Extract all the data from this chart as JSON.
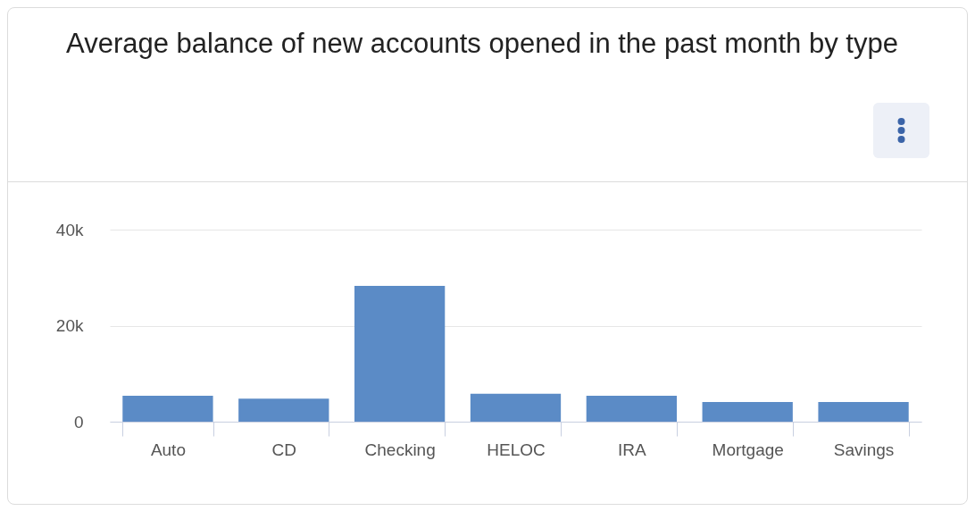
{
  "chart_data": {
    "type": "bar",
    "title": "Average balance of new accounts opened in the past month by type",
    "categories": [
      "Auto",
      "CD",
      "Checking",
      "HELOC",
      "IRA",
      "Mortgage",
      "Savings"
    ],
    "values": [
      5400,
      4800,
      28300,
      5800,
      5400,
      4100,
      4100
    ],
    "color": "#5b8bc6",
    "ylim": [
      0,
      40000
    ],
    "yticks": [
      {
        "value": 0,
        "label": "0"
      },
      {
        "value": 20000,
        "label": "20k"
      },
      {
        "value": 40000,
        "label": "40k"
      }
    ],
    "grid": "y"
  }
}
